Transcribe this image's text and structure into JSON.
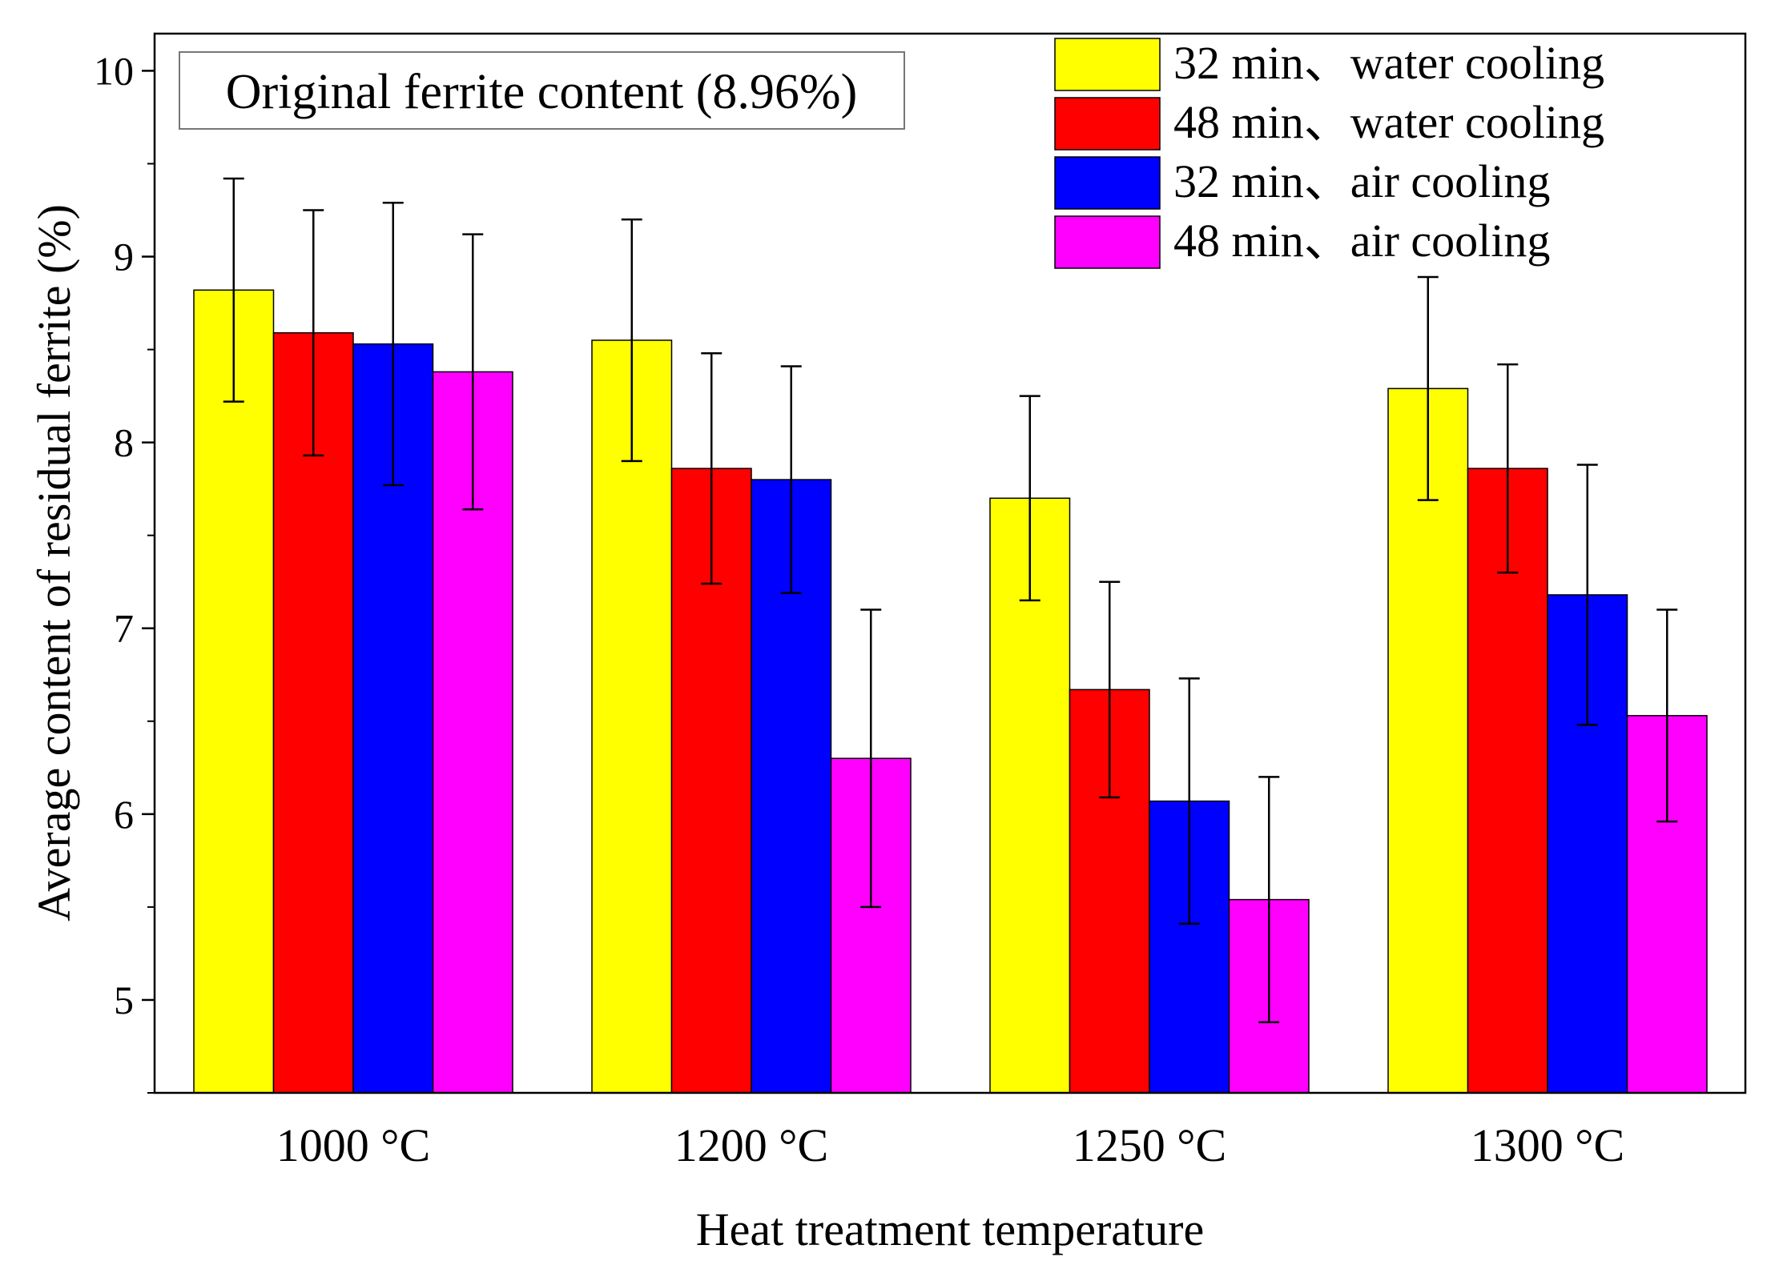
{
  "chart_data": {
    "type": "bar",
    "title": "",
    "xlabel": "Heat treatment temperature",
    "ylabel": "Average content of residual ferrite (%)",
    "ylim": [
      4.5,
      10.2
    ],
    "yticks": [
      5,
      6,
      7,
      8,
      9,
      10
    ],
    "grid": false,
    "legend_position": "top-right",
    "categories": [
      "1000 °C",
      "1200 °C",
      "1250 °C",
      "1300 °C"
    ],
    "series": [
      {
        "name": "32 min、water cooling",
        "color": "#ffff00",
        "values": [
          8.82,
          8.55,
          7.7,
          8.29
        ],
        "err_low": [
          8.22,
          7.9,
          7.15,
          7.69
        ],
        "err_high": [
          9.42,
          9.2,
          8.25,
          8.89
        ]
      },
      {
        "name": "48 min、water cooling",
        "color": "#ff0000",
        "values": [
          8.59,
          7.86,
          6.67,
          7.86
        ],
        "err_low": [
          7.93,
          7.24,
          6.09,
          7.3
        ],
        "err_high": [
          9.25,
          8.48,
          7.25,
          8.42
        ]
      },
      {
        "name": "32 min、air cooling",
        "color": "#0000ff",
        "values": [
          8.53,
          7.8,
          6.07,
          7.18
        ],
        "err_low": [
          7.77,
          7.19,
          5.41,
          6.48
        ],
        "err_high": [
          9.29,
          8.41,
          6.73,
          7.88
        ]
      },
      {
        "name": "48 min、air cooling",
        "color": "#ff00ff",
        "values": [
          8.38,
          6.3,
          5.54,
          6.53
        ],
        "err_low": [
          7.64,
          5.5,
          4.88,
          5.96
        ],
        "err_high": [
          9.12,
          7.1,
          6.2,
          7.1
        ]
      }
    ],
    "annotation": "Original ferrite content (8.96%)"
  }
}
